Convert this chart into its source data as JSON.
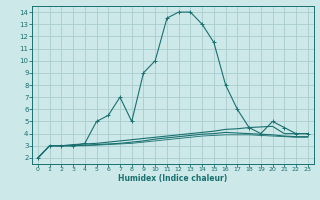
{
  "xlabel": "Humidex (Indice chaleur)",
  "bg_color": "#cce8e8",
  "grid_color": "#aacccc",
  "line_color": "#1a7070",
  "xlim": [
    -0.5,
    23.5
  ],
  "ylim": [
    1.5,
    14.5
  ],
  "xticks": [
    0,
    1,
    2,
    3,
    4,
    5,
    6,
    7,
    8,
    9,
    10,
    11,
    12,
    13,
    14,
    15,
    16,
    17,
    18,
    19,
    20,
    21,
    22,
    23
  ],
  "yticks": [
    2,
    3,
    4,
    5,
    6,
    7,
    8,
    9,
    10,
    11,
    12,
    13,
    14
  ],
  "curve1_x": [
    0,
    1,
    2,
    3,
    4,
    5,
    6,
    7,
    8,
    9,
    10,
    11,
    12,
    13,
    14,
    15,
    16,
    17,
    18,
    19,
    20,
    21,
    22,
    23
  ],
  "curve1_y": [
    2,
    3,
    3,
    3,
    3.2,
    5,
    5.5,
    7,
    5,
    9,
    10,
    13.5,
    14,
    14,
    13,
    11.5,
    8,
    6,
    4.5,
    4,
    5,
    4.5,
    4,
    4
  ],
  "curve2_x": [
    0,
    1,
    2,
    3,
    4,
    5,
    6,
    7,
    8,
    9,
    10,
    11,
    12,
    13,
    14,
    15,
    16,
    17,
    18,
    19,
    20,
    21,
    22,
    23
  ],
  "curve2_y": [
    2,
    3,
    3,
    3.1,
    3.15,
    3.2,
    3.3,
    3.4,
    3.5,
    3.6,
    3.7,
    3.8,
    3.9,
    4.0,
    4.1,
    4.2,
    4.35,
    4.4,
    4.5,
    4.55,
    4.6,
    4.0,
    4.0,
    4.0
  ],
  "curve3_x": [
    0,
    1,
    2,
    3,
    4,
    5,
    6,
    7,
    8,
    9,
    10,
    11,
    12,
    13,
    14,
    15,
    16,
    17,
    18,
    19,
    20,
    21,
    22,
    23
  ],
  "curve3_y": [
    2,
    3,
    3,
    3.0,
    3.05,
    3.1,
    3.15,
    3.2,
    3.3,
    3.4,
    3.55,
    3.65,
    3.75,
    3.85,
    3.95,
    4.0,
    4.1,
    4.05,
    4.0,
    3.95,
    3.9,
    3.8,
    3.75,
    3.75
  ],
  "curve4_x": [
    0,
    1,
    2,
    3,
    4,
    5,
    6,
    7,
    8,
    9,
    10,
    11,
    12,
    13,
    14,
    15,
    16,
    17,
    18,
    19,
    20,
    21,
    22,
    23
  ],
  "curve4_y": [
    2,
    3,
    3,
    3.0,
    3.0,
    3.05,
    3.1,
    3.15,
    3.2,
    3.3,
    3.4,
    3.5,
    3.6,
    3.7,
    3.8,
    3.85,
    3.9,
    3.9,
    3.9,
    3.85,
    3.8,
    3.75,
    3.7,
    3.7
  ]
}
